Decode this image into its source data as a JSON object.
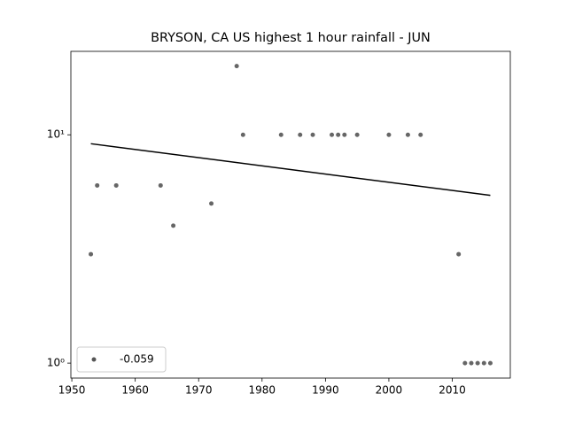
{
  "chart_data": {
    "type": "scatter",
    "title": "BRYSON, CA US highest 1 hour rainfall - JUN",
    "x": [
      1953,
      1954,
      1957,
      1964,
      1966,
      1972,
      1976,
      1977,
      1983,
      1986,
      1988,
      1991,
      1992,
      1993,
      1995,
      2000,
      2003,
      2005,
      2011,
      2012,
      2013,
      2014,
      2015,
      2016
    ],
    "series": [
      {
        "name": "-0.059",
        "color": "#555555",
        "values": [
          3,
          6,
          6,
          6,
          4,
          5,
          20,
          10,
          10,
          10,
          10,
          10,
          10,
          10,
          10,
          10,
          10,
          10,
          3,
          1,
          1,
          1,
          1,
          1
        ]
      }
    ],
    "trend": {
      "color": "#000000",
      "x": [
        1953,
        2016
      ],
      "values": [
        9.14,
        5.43
      ]
    },
    "xlim": [
      1949.85,
      2019.15
    ],
    "ylim": [
      0.86,
      23.2
    ],
    "xticks": [
      1950,
      1960,
      1970,
      1980,
      1990,
      2000,
      2010
    ],
    "yticks": [
      {
        "value": 1,
        "label": "10⁰"
      },
      {
        "value": 10,
        "label": "10¹"
      }
    ],
    "log_y": true,
    "grid": false,
    "legend": "lower left"
  }
}
